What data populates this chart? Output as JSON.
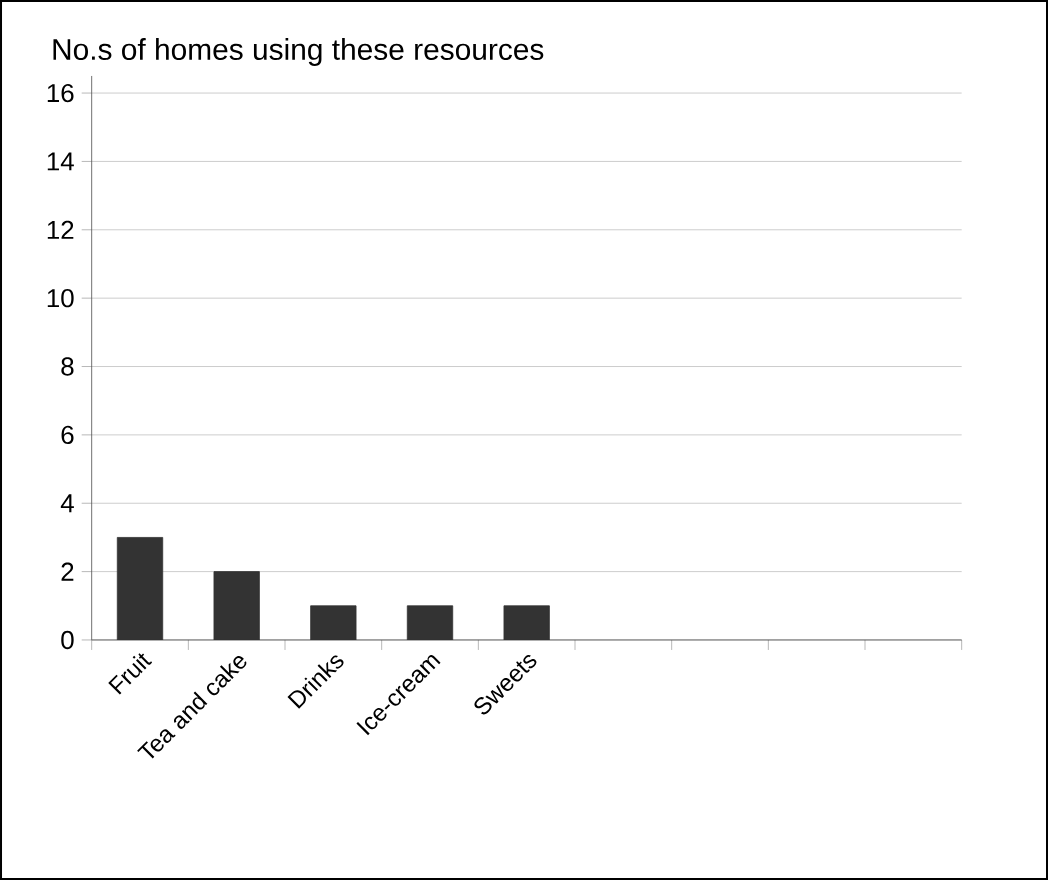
{
  "chart_data": {
    "type": "bar",
    "title": "No.s of homes using these resources",
    "categories": [
      "Fruit",
      "Tea and cake",
      "Drinks",
      "Ice-cream",
      "Sweets",
      null,
      null,
      null,
      null
    ],
    "values": [
      3,
      2,
      1,
      1,
      1,
      null,
      null,
      null,
      null
    ],
    "color": "#333333",
    "ylim": [
      0,
      16.5
    ],
    "yticks": [
      0,
      2,
      4,
      6,
      8,
      10,
      12,
      14,
      16
    ],
    "grid": "y"
  }
}
